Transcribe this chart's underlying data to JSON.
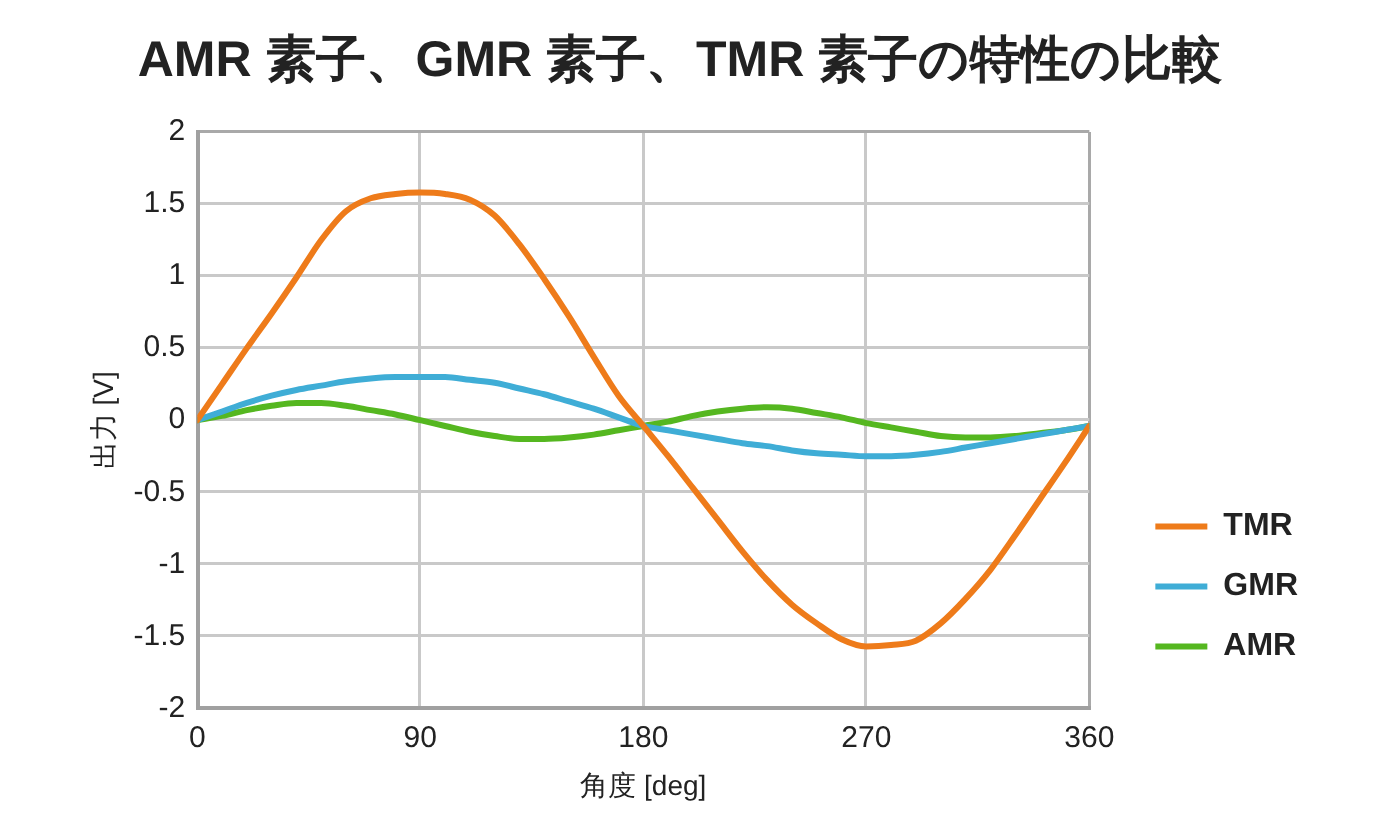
{
  "chart_data": {
    "type": "line",
    "title": "AMR 素子、GMR 素子、TMR 素子の特性の比較",
    "xlabel": "角度 [deg]",
    "ylabel": "出力 [V]",
    "x": [
      0,
      10,
      20,
      30,
      40,
      50,
      60,
      70,
      80,
      90,
      100,
      110,
      120,
      130,
      140,
      150,
      160,
      170,
      180,
      190,
      200,
      210,
      220,
      230,
      240,
      250,
      260,
      270,
      280,
      290,
      300,
      310,
      320,
      330,
      340,
      350,
      360
    ],
    "series": [
      {
        "name": "TMR",
        "color": "#ee7b1a",
        "values": [
          0,
          0.25,
          0.5,
          0.74,
          0.99,
          1.25,
          1.45,
          1.54,
          1.57,
          1.58,
          1.57,
          1.53,
          1.42,
          1.22,
          0.98,
          0.72,
          0.44,
          0.17,
          -0.04,
          -0.25,
          -0.47,
          -0.69,
          -0.91,
          -1.11,
          -1.28,
          -1.41,
          -1.52,
          -1.57,
          -1.56,
          -1.53,
          -1.41,
          -1.24,
          -1.04,
          -0.8,
          -0.55,
          -0.3,
          -0.04
        ]
      },
      {
        "name": "GMR",
        "color": "#3fadd6",
        "values": [
          0,
          0.06,
          0.12,
          0.17,
          0.21,
          0.24,
          0.27,
          0.29,
          0.3,
          0.3,
          0.3,
          0.28,
          0.26,
          0.22,
          0.18,
          0.13,
          0.08,
          0.02,
          -0.04,
          -0.07,
          -0.1,
          -0.13,
          -0.16,
          -0.18,
          -0.21,
          -0.23,
          -0.24,
          -0.25,
          -0.25,
          -0.24,
          -0.22,
          -0.19,
          -0.16,
          -0.13,
          -0.1,
          -0.07,
          -0.04
        ]
      },
      {
        "name": "AMR",
        "color": "#55b720",
        "values": [
          0,
          0.03,
          0.07,
          0.1,
          0.12,
          0.12,
          0.1,
          0.07,
          0.04,
          0,
          -0.04,
          -0.08,
          -0.11,
          -0.13,
          -0.13,
          -0.12,
          -0.1,
          -0.07,
          -0.04,
          -0.01,
          0.03,
          0.06,
          0.08,
          0.09,
          0.08,
          0.05,
          0.02,
          -0.02,
          -0.05,
          -0.08,
          -0.11,
          -0.12,
          -0.12,
          -0.11,
          -0.09,
          -0.07,
          -0.04
        ]
      }
    ],
    "xlim": [
      0,
      360
    ],
    "xticks": [
      0,
      90,
      180,
      270,
      360
    ],
    "ylim": [
      -2,
      2
    ],
    "yticks": [
      -2,
      -1.5,
      -1,
      -0.5,
      0,
      0.5,
      1,
      1.5,
      2
    ],
    "grid": true,
    "legend": "right",
    "marker": "none",
    "line_style": "solid"
  }
}
